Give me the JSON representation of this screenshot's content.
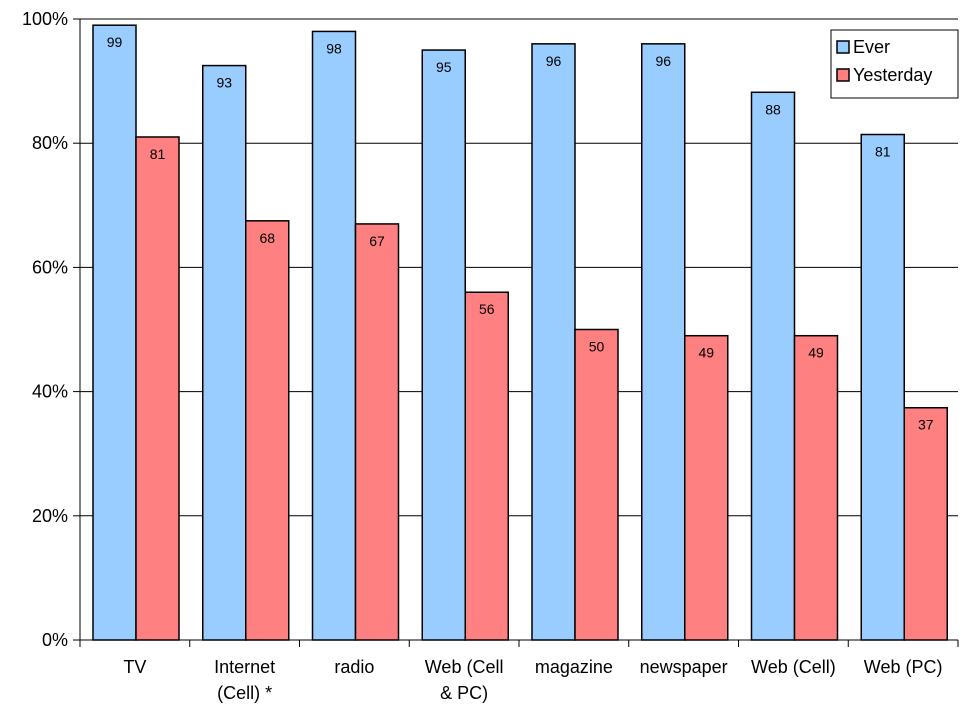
{
  "chart_data": {
    "type": "bar",
    "categories": [
      [
        "TV"
      ],
      [
        "Internet",
        "(Cell) *"
      ],
      [
        "radio"
      ],
      [
        "Web (Cell",
        "& PC)"
      ],
      [
        "magazine"
      ],
      [
        "newspaper"
      ],
      [
        "Web (Cell)"
      ],
      [
        "Web (PC)"
      ]
    ],
    "series": [
      {
        "name": "Ever",
        "values": [
          99,
          92.5,
          98,
          95,
          96,
          96,
          88.2,
          81.4
        ],
        "labels": [
          "99",
          "93",
          "98",
          "95",
          "96",
          "96",
          "88",
          "81"
        ],
        "color": "#99ccff"
      },
      {
        "name": "Yesterday",
        "values": [
          81,
          67.5,
          67,
          56,
          50,
          49,
          49,
          37.4
        ],
        "labels": [
          "81",
          "68",
          "67",
          "56",
          "50",
          "49",
          "49",
          "37"
        ],
        "color": "#ff8080"
      }
    ],
    "ylim": [
      0,
      100
    ],
    "yticks": [
      0,
      20,
      40,
      60,
      80,
      100
    ],
    "ytick_labels": [
      "0%",
      "20%",
      "40%",
      "60%",
      "80%",
      "100%"
    ],
    "grid": true,
    "legend_position": "top-right",
    "title": "",
    "xlabel": "",
    "ylabel": ""
  }
}
